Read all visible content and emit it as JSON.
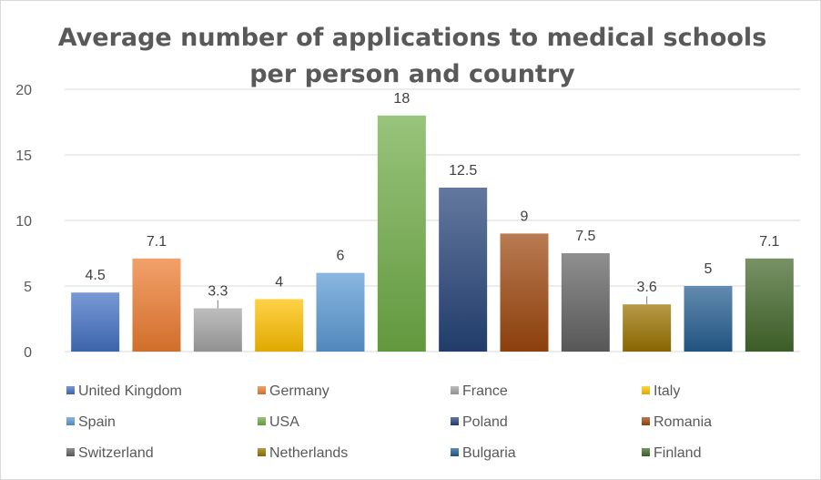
{
  "chart_data": {
    "type": "bar",
    "title_lines": [
      "Average number of applications to medical schools",
      "per person and country"
    ],
    "categories": [
      "United Kingdom",
      "Germany",
      "France",
      "Italy",
      "Spain",
      "USA",
      "Poland",
      "Romania",
      "Switzerland",
      "Netherlands",
      "Bulgaria",
      "Finland"
    ],
    "values": [
      4.5,
      7.1,
      3.3,
      4,
      6,
      18,
      12.5,
      9,
      7.5,
      3.6,
      5,
      7.1
    ],
    "data_labels": [
      "4.5",
      "7.1",
      "3.3",
      "4",
      "6",
      "18",
      "12.5",
      "9",
      "7.5",
      "3.6",
      "5",
      "7.1"
    ],
    "colors": [
      "#4472C4",
      "#ED7D31",
      "#A5A5A5",
      "#FFC000",
      "#5B9BD5",
      "#70AD47",
      "#264478",
      "#9E480E",
      "#636363",
      "#997300",
      "#255E91",
      "#43682B"
    ],
    "ylim": [
      0,
      20
    ],
    "yticks": [
      0,
      5,
      10,
      15,
      20
    ],
    "ytick_labels": [
      "0",
      "5",
      "10",
      "15",
      "20"
    ],
    "xlabel": "",
    "ylabel": "",
    "grid": true,
    "legend_position": "bottom"
  }
}
